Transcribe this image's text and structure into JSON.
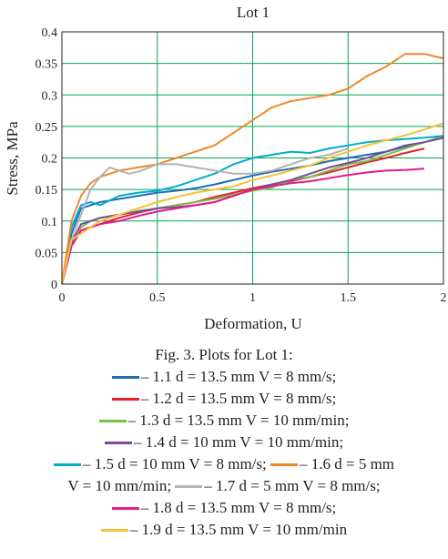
{
  "chart_data": {
    "type": "line",
    "title": "Lot 1",
    "xlabel": "Deformation, U",
    "ylabel": "Stress, MPa",
    "xlim": [
      0,
      2
    ],
    "ylim": [
      0,
      0.4
    ],
    "xticks": [
      "0",
      "0.5",
      "1",
      "1.5",
      "2"
    ],
    "yticks": [
      "0",
      "0.05",
      "0.1",
      "0.15",
      "0.2",
      "0.25",
      "0.3",
      "0.35",
      "0.4"
    ],
    "grid": true,
    "series": [
      {
        "name": "1.1",
        "color": "#1f6db5",
        "x": [
          0,
          0.05,
          0.1,
          0.15,
          0.2,
          0.3,
          0.4,
          0.5,
          0.6,
          0.7,
          0.8,
          0.9,
          1.0,
          1.1,
          1.2,
          1.3,
          1.4,
          1.5,
          1.6,
          1.7,
          1.8,
          1.9,
          2.0
        ],
        "y": [
          0,
          0.08,
          0.12,
          0.125,
          0.13,
          0.135,
          0.14,
          0.145,
          0.148,
          0.152,
          0.158,
          0.165,
          0.172,
          0.178,
          0.183,
          0.188,
          0.195,
          0.2,
          0.205,
          0.21,
          0.218,
          0.225,
          0.232
        ]
      },
      {
        "name": "1.2",
        "color": "#e4202b",
        "x": [
          0,
          0.05,
          0.1,
          0.15,
          0.2,
          0.3,
          0.4,
          0.5,
          0.6,
          0.7,
          0.8,
          0.9,
          1.0,
          1.1,
          1.2,
          1.3,
          1.4,
          1.5,
          1.6,
          1.7,
          1.8,
          1.9
        ],
        "y": [
          0,
          0.06,
          0.085,
          0.09,
          0.095,
          0.105,
          0.113,
          0.12,
          0.125,
          0.13,
          0.138,
          0.145,
          0.152,
          0.158,
          0.163,
          0.17,
          0.177,
          0.185,
          0.193,
          0.2,
          0.208,
          0.215
        ]
      },
      {
        "name": "1.3",
        "color": "#7dc143",
        "x": [
          0,
          0.05,
          0.1,
          0.15,
          0.2,
          0.3,
          0.4,
          0.5,
          0.6,
          0.7,
          0.8,
          0.9,
          1.0,
          1.1,
          1.2,
          1.3,
          1.4,
          1.5,
          1.6,
          1.7,
          1.8,
          1.9,
          2.0
        ],
        "y": [
          0,
          0.07,
          0.09,
          0.1,
          0.105,
          0.11,
          0.116,
          0.12,
          0.125,
          0.13,
          0.135,
          0.142,
          0.148,
          0.153,
          0.165,
          0.17,
          0.18,
          0.19,
          0.195,
          0.205,
          0.215,
          0.225,
          0.235
        ]
      },
      {
        "name": "1.4",
        "color": "#7c4a9b",
        "x": [
          0,
          0.05,
          0.1,
          0.15,
          0.2,
          0.3,
          0.4,
          0.5,
          0.6,
          0.7,
          0.8,
          0.9,
          1.0,
          1.1,
          1.2,
          1.3,
          1.4,
          1.5,
          1.6,
          1.7,
          1.8,
          1.9,
          2.0
        ],
        "y": [
          0,
          0.065,
          0.095,
          0.1,
          0.105,
          0.11,
          0.115,
          0.12,
          0.122,
          0.125,
          0.13,
          0.14,
          0.15,
          0.158,
          0.165,
          0.175,
          0.185,
          0.192,
          0.2,
          0.21,
          0.22,
          0.225,
          0.232
        ]
      },
      {
        "name": "1.5",
        "color": "#00aecb",
        "x": [
          0,
          0.05,
          0.1,
          0.15,
          0.2,
          0.3,
          0.4,
          0.5,
          0.6,
          0.7,
          0.8,
          0.9,
          1.0,
          1.1,
          1.2,
          1.3,
          1.4,
          1.5,
          1.6,
          1.7,
          1.8,
          1.9,
          2.0
        ],
        "y": [
          0,
          0.09,
          0.125,
          0.13,
          0.125,
          0.14,
          0.145,
          0.148,
          0.155,
          0.165,
          0.175,
          0.19,
          0.2,
          0.205,
          0.21,
          0.208,
          0.215,
          0.22,
          0.225,
          0.228,
          0.23,
          0.232,
          0.235
        ]
      },
      {
        "name": "1.6",
        "color": "#f0872b",
        "x": [
          0,
          0.05,
          0.1,
          0.15,
          0.2,
          0.3,
          0.4,
          0.5,
          0.6,
          0.7,
          0.8,
          0.9,
          1.0,
          1.1,
          1.2,
          1.3,
          1.4,
          1.5,
          1.6,
          1.7,
          1.8,
          1.9,
          2.0
        ],
        "y": [
          0,
          0.1,
          0.14,
          0.16,
          0.17,
          0.18,
          0.185,
          0.19,
          0.2,
          0.21,
          0.22,
          0.24,
          0.26,
          0.28,
          0.29,
          0.295,
          0.3,
          0.31,
          0.33,
          0.345,
          0.365,
          0.365,
          0.358
        ]
      },
      {
        "name": "1.7",
        "color": "#b3b3b3",
        "x": [
          0,
          0.05,
          0.1,
          0.15,
          0.2,
          0.25,
          0.3,
          0.35,
          0.4,
          0.5,
          0.6,
          0.7,
          0.8,
          0.9,
          1.0,
          1.1,
          1.2,
          1.3,
          1.4,
          1.5
        ],
        "y": [
          0,
          0.07,
          0.11,
          0.15,
          0.17,
          0.185,
          0.18,
          0.175,
          0.178,
          0.19,
          0.19,
          0.185,
          0.18,
          0.175,
          0.175,
          0.18,
          0.19,
          0.2,
          0.205,
          0.215
        ]
      },
      {
        "name": "1.8",
        "color": "#e6198e",
        "x": [
          0,
          0.05,
          0.1,
          0.15,
          0.2,
          0.3,
          0.4,
          0.5,
          0.6,
          0.7,
          0.8,
          0.9,
          1.0,
          1.1,
          1.2,
          1.3,
          1.4,
          1.5,
          1.6,
          1.7,
          1.8,
          1.9
        ],
        "y": [
          0,
          0.06,
          0.085,
          0.09,
          0.095,
          0.1,
          0.108,
          0.115,
          0.12,
          0.125,
          0.13,
          0.14,
          0.15,
          0.155,
          0.16,
          0.163,
          0.168,
          0.173,
          0.177,
          0.18,
          0.181,
          0.183
        ]
      },
      {
        "name": "1.9",
        "color": "#f7c234",
        "x": [
          0,
          0.05,
          0.1,
          0.15,
          0.2,
          0.3,
          0.4,
          0.5,
          0.6,
          0.7,
          0.8,
          0.9,
          1.0,
          1.1,
          1.2,
          1.3,
          1.4,
          1.5,
          1.6,
          1.7,
          1.8,
          1.9,
          2.0
        ],
        "y": [
          0,
          0.07,
          0.08,
          0.09,
          0.1,
          0.11,
          0.12,
          0.13,
          0.138,
          0.145,
          0.15,
          0.155,
          0.165,
          0.172,
          0.18,
          0.188,
          0.2,
          0.21,
          0.22,
          0.228,
          0.236,
          0.245,
          0.255
        ]
      }
    ]
  },
  "caption": {
    "title": "Fig. 3. Plots for Lot 1:",
    "line1": "– 1.1 d = 13.5 mm V = 8 mm/s;",
    "line2": "– 1.2 d = 13.5 mm V = 8 mm/s;",
    "line3": "– 1.3 d = 13.5 mm V = 10 mm/min;",
    "line4": "– 1.4 d = 10 mm V = 10 mm/min;",
    "line5a": "– 1.5 d = 10 mm V = 8 mm/s;",
    "line5b": "– 1.6 d = 5 mm",
    "line6a": "V = 10 mm/min;",
    "line6b": "– 1.7 d = 5 mm V = 8 mm/s;",
    "line7": "– 1.8 d = 13.5 mm V = 8 mm/s;",
    "line8": "– 1.9 d = 13.5 mm V = 10 mm/min"
  }
}
